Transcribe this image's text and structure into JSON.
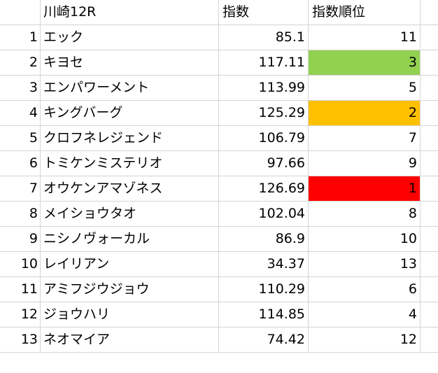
{
  "sheet": {
    "header": {
      "race": "川崎12R",
      "index_label": "指数",
      "rank_label": "指数順位"
    },
    "rows": [
      {
        "no": "1",
        "name": "エック",
        "index": "85.1",
        "rank": "11",
        "highlight": ""
      },
      {
        "no": "2",
        "name": "キヨセ",
        "index": "117.11",
        "rank": "3",
        "highlight": "#92d050"
      },
      {
        "no": "3",
        "name": "エンパワーメント",
        "index": "113.99",
        "rank": "5",
        "highlight": ""
      },
      {
        "no": "4",
        "name": "キングバーグ",
        "index": "125.29",
        "rank": "2",
        "highlight": "#ffc000"
      },
      {
        "no": "5",
        "name": "クロフネレジェンド",
        "index": "106.79",
        "rank": "7",
        "highlight": ""
      },
      {
        "no": "6",
        "name": "トミケンミステリオ",
        "index": "97.66",
        "rank": "9",
        "highlight": ""
      },
      {
        "no": "7",
        "name": "オウケンアマゾネス",
        "index": "126.69",
        "rank": "1",
        "highlight": "#ff0000"
      },
      {
        "no": "8",
        "name": "メイショウタオ",
        "index": "102.04",
        "rank": "8",
        "highlight": ""
      },
      {
        "no": "9",
        "name": "ニシノヴォーカル",
        "index": "86.9",
        "rank": "10",
        "highlight": ""
      },
      {
        "no": "10",
        "name": "レイリアン",
        "index": "34.37",
        "rank": "13",
        "highlight": ""
      },
      {
        "no": "11",
        "name": "アミフジウジョウ",
        "index": "110.29",
        "rank": "6",
        "highlight": ""
      },
      {
        "no": "12",
        "name": "ジョウハリ",
        "index": "114.85",
        "rank": "4",
        "highlight": ""
      },
      {
        "no": "13",
        "name": "ネオマイア",
        "index": "74.42",
        "rank": "12",
        "highlight": ""
      }
    ]
  }
}
